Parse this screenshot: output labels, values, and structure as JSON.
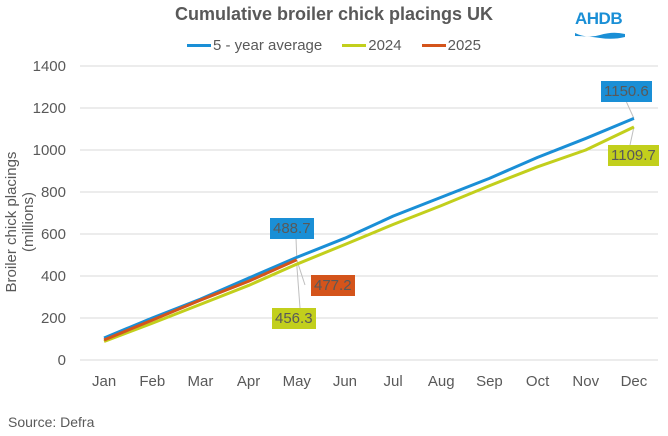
{
  "title": "Cumulative broiler chick placings UK",
  "logo": {
    "text": "AHDB",
    "color": "#1a8fd6"
  },
  "source": "Source: Defra",
  "legend": [
    {
      "label": "5 - year average",
      "color": "#1a8fd6"
    },
    {
      "label": "2024",
      "color": "#c2cf1c"
    },
    {
      "label": "2025",
      "color": "#d4541b"
    }
  ],
  "data_labels": {
    "avg_may": "488.7",
    "y2025_may": "477.2",
    "y2024_may": "456.3",
    "avg_dec": "1150.6",
    "y2024_dec": "1109.7"
  },
  "chart_data": {
    "type": "line",
    "title": "Cumulative broiler chick placings UK",
    "xlabel": "",
    "ylabel": "Broiler chick placings (millions)",
    "ylim": [
      0,
      1400
    ],
    "yticks": [
      0,
      200,
      400,
      600,
      800,
      1000,
      1200,
      1400
    ],
    "grid": true,
    "legend_position": "top",
    "categories": [
      "Jan",
      "Feb",
      "Mar",
      "Apr",
      "May",
      "Jun",
      "Jul",
      "Aug",
      "Sep",
      "Oct",
      "Nov",
      "Dec"
    ],
    "series": [
      {
        "name": "5 - year average",
        "color": "#1a8fd6",
        "values": [
          105,
          200,
          290,
          390,
          488.7,
          580,
          685,
          775,
          865,
          965,
          1055,
          1150.6
        ]
      },
      {
        "name": "2024",
        "color": "#c2cf1c",
        "values": [
          88,
          175,
          265,
          355,
          456.3,
          550,
          645,
          735,
          830,
          920,
          1000,
          1109.7
        ]
      },
      {
        "name": "2025",
        "color": "#d4541b",
        "values": [
          95,
          190,
          285,
          375,
          477.2
        ]
      }
    ],
    "annotations": [
      "488.7",
      "477.2",
      "456.3",
      "1150.6",
      "1109.7"
    ],
    "source": "Source: Defra"
  }
}
